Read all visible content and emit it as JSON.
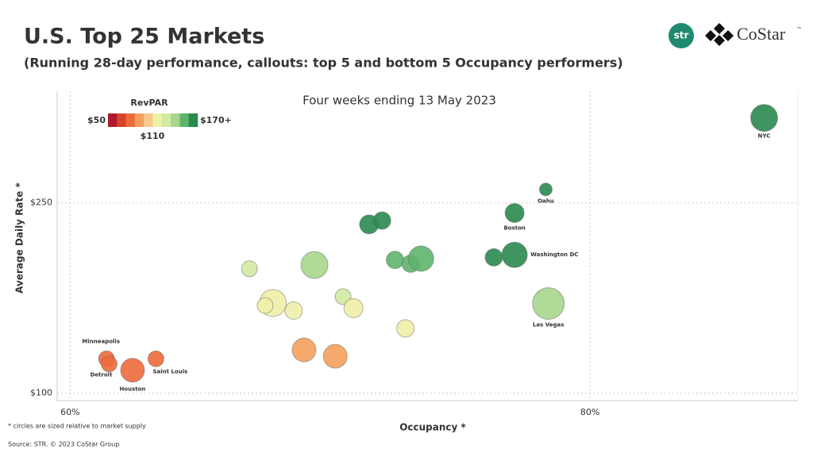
{
  "chart_data": {
    "type": "scatter",
    "title": "U.S. Top 25 Markets",
    "subtitle": "(Running 28-day performance, callouts: top 5 and bottom 5 Occupancy performers)",
    "annotation": "Four weeks ending 13 May 2023",
    "x_label": "Occupancy *",
    "y_label": "Average Daily Rate *",
    "footnote": "* circles are sized relative to market supply",
    "source": "Source: STR. © 2023 CoStar Group",
    "logos": {
      "str": "str",
      "costar": "CoStar",
      "tm": "™"
    },
    "xlim": [
      59.5,
      88
    ],
    "ylim": [
      94,
      338
    ],
    "xticks": [
      {
        "value": 60,
        "label": "60%"
      },
      {
        "value": 80,
        "label": "80%"
      }
    ],
    "yticks": [
      {
        "value": 100,
        "label": "$100"
      },
      {
        "value": 250,
        "label": "$250"
      }
    ],
    "grid": true,
    "color_scale": {
      "title": "RevPAR",
      "min": {
        "value": 50,
        "label": "$50"
      },
      "mid": {
        "value": 110,
        "label": "$110"
      },
      "max": {
        "value": 170,
        "label": "$170+"
      },
      "colors": [
        "#b2182b",
        "#d6452b",
        "#ec6a3c",
        "#f4a05c",
        "#f8c98c",
        "#eef0a8",
        "#d3eaa2",
        "#a6d68c",
        "#5fb46c",
        "#2a8a4e"
      ]
    },
    "series": [
      {
        "name": "Markets",
        "x": [
          86.7,
          78.3,
          77.1,
          77.1,
          76.3,
          78.4,
          71.5,
          72.0,
          72.5,
          73.1,
          73.5,
          69.4,
          66.9,
          70.5,
          70.9,
          67.8,
          67.5,
          68.6,
          72.9,
          69.0,
          70.2,
          61.4,
          61.5,
          62.4,
          63.3
        ],
        "values": [
          317,
          260.6,
          242,
          209,
          207,
          170.6,
          233,
          236,
          205,
          202,
          206,
          201,
          198,
          176,
          167,
          171,
          169,
          165,
          151,
          134,
          129,
          127,
          123,
          118,
          127
        ],
        "sizes": [
          289,
          64,
          144,
          256,
          121,
          400,
          144,
          121,
          121,
          121,
          256,
          289,
          100,
          100,
          144,
          289,
          100,
          121,
          121,
          225,
          225,
          100,
          100,
          225,
          100
        ],
        "revpar": [
          275,
          204,
          187,
          161,
          158,
          134,
          167,
          170,
          149,
          148,
          151,
          139.5,
          132,
          124,
          118,
          116,
          114,
          113,
          110,
          92,
          91,
          78,
          76,
          74,
          80
        ],
        "labels": [
          "NYC",
          "Oahu",
          "Boston",
          "Washington DC",
          null,
          "Las Vegas",
          null,
          null,
          null,
          null,
          null,
          null,
          null,
          null,
          null,
          null,
          null,
          null,
          null,
          null,
          null,
          "Minneapolis",
          "Detroit",
          "Houston",
          "Saint Louis"
        ]
      }
    ]
  }
}
